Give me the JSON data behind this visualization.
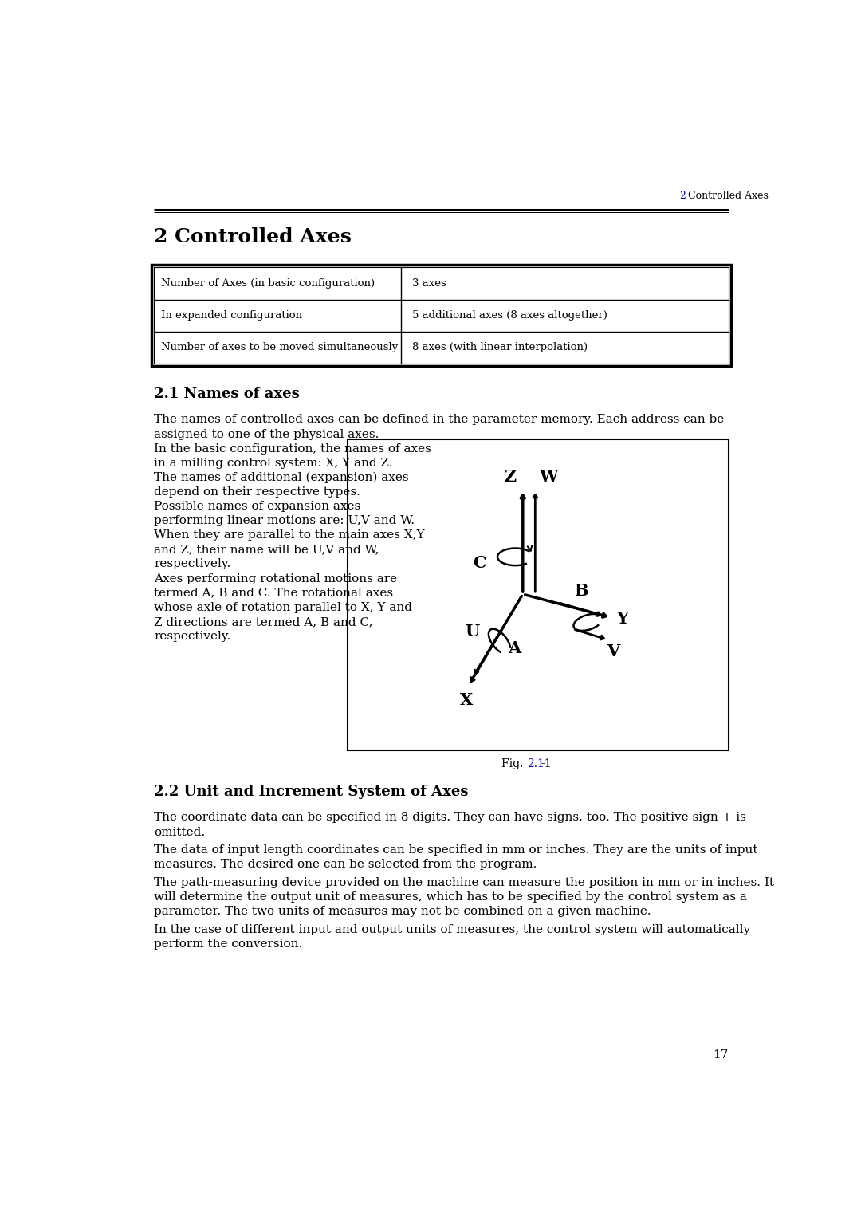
{
  "page_title": "2 Controlled Axes",
  "header_line_text": " Controlled Axes",
  "header_num": "2",
  "section_title": "2 Controlled Axes",
  "table": {
    "rows": [
      [
        "Number of Axes (in basic configuration)",
        "3 axes"
      ],
      [
        "In expanded configuration",
        "5 additional axes (8 axes altogether)"
      ],
      [
        "Number of axes to be moved simultaneously",
        "8 axes (with linear interpolation)"
      ]
    ]
  },
  "section_21_title": "2.1 Names of axes",
  "section_21_text_full": [
    "The names of controlled axes can be defined in the parameter memory. Each address can be",
    "assigned to one of the physical axes."
  ],
  "section_21_text_left": [
    "In the basic configuration, the names of axes",
    "in a milling control system: X, Y and Z.",
    "The names of additional (expansion) axes",
    "depend on their respective types.",
    "Possible names of expansion axes",
    "performing linear motions are: U,V and W.",
    "When they are parallel to the main axes X,Y",
    "and Z, their name will be U,V and W,",
    "respectively.",
    "Axes performing rotational motions are",
    "termed A, B and C. The rotational axes",
    "whose axle of rotation parallel to X, Y and",
    "Z directions are termed A, B and C,",
    "respectively."
  ],
  "fig_caption_prefix": "Fig. ",
  "fig_caption_link": "2.1",
  "fig_caption_suffix": "-1",
  "section_22_title": "2.2 Unit and Increment System of Axes",
  "section_22_paragraphs": [
    [
      "The coordinate data can be specified in 8 digits. They can have signs, too. The positive sign + is",
      "omitted."
    ],
    [
      "The data of input length coordinates can be specified in mm or inches. They are the units of input",
      "measures. The desired one can be selected from the program."
    ],
    [
      "The path-measuring device provided on the machine can measure the position in mm or in inches. It",
      "will determine the output unit of measures, which has to be specified by the control system as a",
      "parameter. The two units of measures may not be combined on a given machine."
    ],
    [
      "In the case of different input and output units of measures, the control system will automatically",
      "perform the conversion."
    ]
  ],
  "page_number": "17",
  "background_color": "#ffffff",
  "text_color": "#000000",
  "link_color": "#0000cc"
}
